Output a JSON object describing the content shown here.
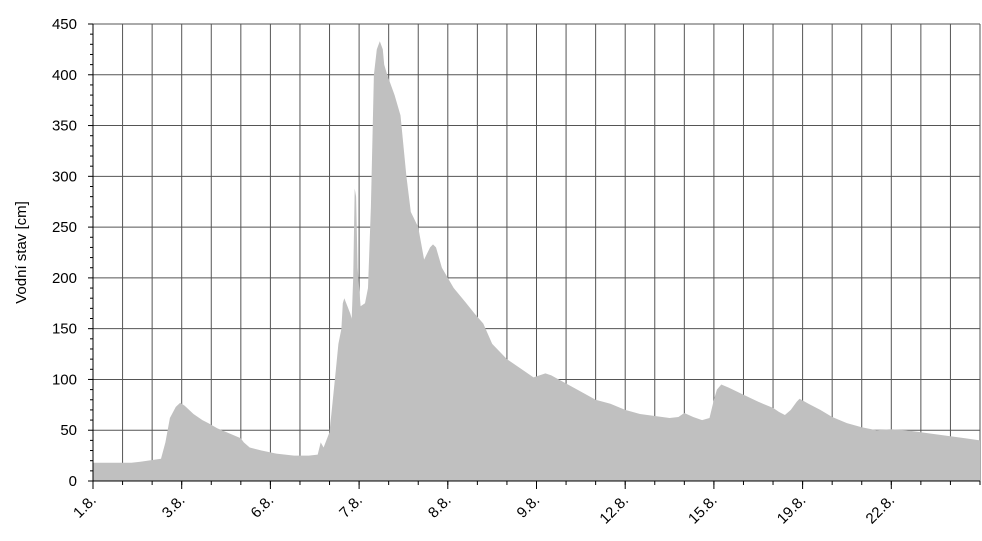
{
  "chart_data": {
    "type": "area",
    "title": "",
    "xlabel": "",
    "ylabel": "Vodní stav [cm]",
    "ylim": [
      0,
      450
    ],
    "yticks": [
      0,
      50,
      100,
      150,
      200,
      250,
      300,
      350,
      400,
      450
    ],
    "xlim": [
      0,
      30
    ],
    "xtick_labels": [
      {
        "x": 0,
        "label": "1.8."
      },
      {
        "x": 3,
        "label": "3.8."
      },
      {
        "x": 6,
        "label": "6.8."
      },
      {
        "x": 9,
        "label": "7.8."
      },
      {
        "x": 12,
        "label": "8.8."
      },
      {
        "x": 15,
        "label": "9.8."
      },
      {
        "x": 18,
        "label": "12.8."
      },
      {
        "x": 21,
        "label": "15.8."
      },
      {
        "x": 24,
        "label": "19.8."
      },
      {
        "x": 27,
        "label": "22.8."
      }
    ],
    "grid": true,
    "fill_color": "#c0c0c0",
    "series": [
      {
        "name": "",
        "points": [
          [
            0,
            18
          ],
          [
            1.3,
            18
          ],
          [
            1.6,
            19
          ],
          [
            2.3,
            22
          ],
          [
            2.45,
            38
          ],
          [
            2.6,
            62
          ],
          [
            2.8,
            73
          ],
          [
            2.95,
            77
          ],
          [
            3.1,
            74
          ],
          [
            3.4,
            66
          ],
          [
            3.7,
            60
          ],
          [
            3.9,
            57
          ],
          [
            4.2,
            52
          ],
          [
            4.6,
            47
          ],
          [
            5,
            42
          ],
          [
            5.1,
            38
          ],
          [
            5.3,
            33
          ],
          [
            5.7,
            30
          ],
          [
            6.2,
            27
          ],
          [
            6.8,
            25
          ],
          [
            7.3,
            25
          ],
          [
            7.6,
            26
          ],
          [
            7.7,
            38
          ],
          [
            7.8,
            33
          ],
          [
            8.0,
            48
          ],
          [
            8.2,
            105
          ],
          [
            8.3,
            135
          ],
          [
            8.4,
            150
          ],
          [
            8.45,
            175
          ],
          [
            8.5,
            180
          ],
          [
            8.7,
            165
          ],
          [
            8.75,
            160
          ],
          [
            8.8,
            200
          ],
          [
            8.85,
            288
          ],
          [
            8.9,
            280
          ],
          [
            8.95,
            210
          ],
          [
            9.05,
            172
          ],
          [
            9.2,
            175
          ],
          [
            9.3,
            190
          ],
          [
            9.4,
            270
          ],
          [
            9.5,
            400
          ],
          [
            9.6,
            425
          ],
          [
            9.7,
            433
          ],
          [
            9.8,
            425
          ],
          [
            9.85,
            410
          ],
          [
            9.95,
            400
          ],
          [
            10.2,
            380
          ],
          [
            10.4,
            360
          ],
          [
            10.6,
            300
          ],
          [
            10.75,
            265
          ],
          [
            11.0,
            250
          ],
          [
            11.2,
            218
          ],
          [
            11.4,
            230
          ],
          [
            11.5,
            233
          ],
          [
            11.6,
            230
          ],
          [
            11.8,
            210
          ],
          [
            12.2,
            190
          ],
          [
            12.6,
            176
          ],
          [
            12.9,
            165
          ],
          [
            13.2,
            155
          ],
          [
            13.5,
            135
          ],
          [
            14.0,
            120
          ],
          [
            14.5,
            110
          ],
          [
            14.9,
            102
          ],
          [
            15.3,
            106
          ],
          [
            15.5,
            104
          ],
          [
            16.0,
            96
          ],
          [
            16.5,
            88
          ],
          [
            17.0,
            80
          ],
          [
            17.5,
            76
          ],
          [
            18.0,
            70
          ],
          [
            18.5,
            66
          ],
          [
            19.0,
            64
          ],
          [
            19.5,
            62
          ],
          [
            19.8,
            63
          ],
          [
            20.0,
            67
          ],
          [
            20.3,
            63
          ],
          [
            20.6,
            60
          ],
          [
            20.85,
            62
          ],
          [
            21.0,
            80
          ],
          [
            21.1,
            90
          ],
          [
            21.25,
            95
          ],
          [
            21.5,
            92
          ],
          [
            22.0,
            85
          ],
          [
            22.5,
            78
          ],
          [
            23.0,
            72
          ],
          [
            23.2,
            68
          ],
          [
            23.4,
            65
          ],
          [
            23.6,
            70
          ],
          [
            23.8,
            78
          ],
          [
            23.9,
            81
          ],
          [
            24.2,
            76
          ],
          [
            24.6,
            70
          ],
          [
            25.0,
            63
          ],
          [
            25.5,
            57
          ],
          [
            26.0,
            53
          ],
          [
            26.5,
            50
          ],
          [
            27.0,
            51
          ],
          [
            27.5,
            50
          ],
          [
            28.0,
            48
          ],
          [
            28.5,
            46
          ],
          [
            29.0,
            44
          ],
          [
            29.5,
            42
          ],
          [
            30.0,
            40
          ]
        ]
      }
    ]
  }
}
